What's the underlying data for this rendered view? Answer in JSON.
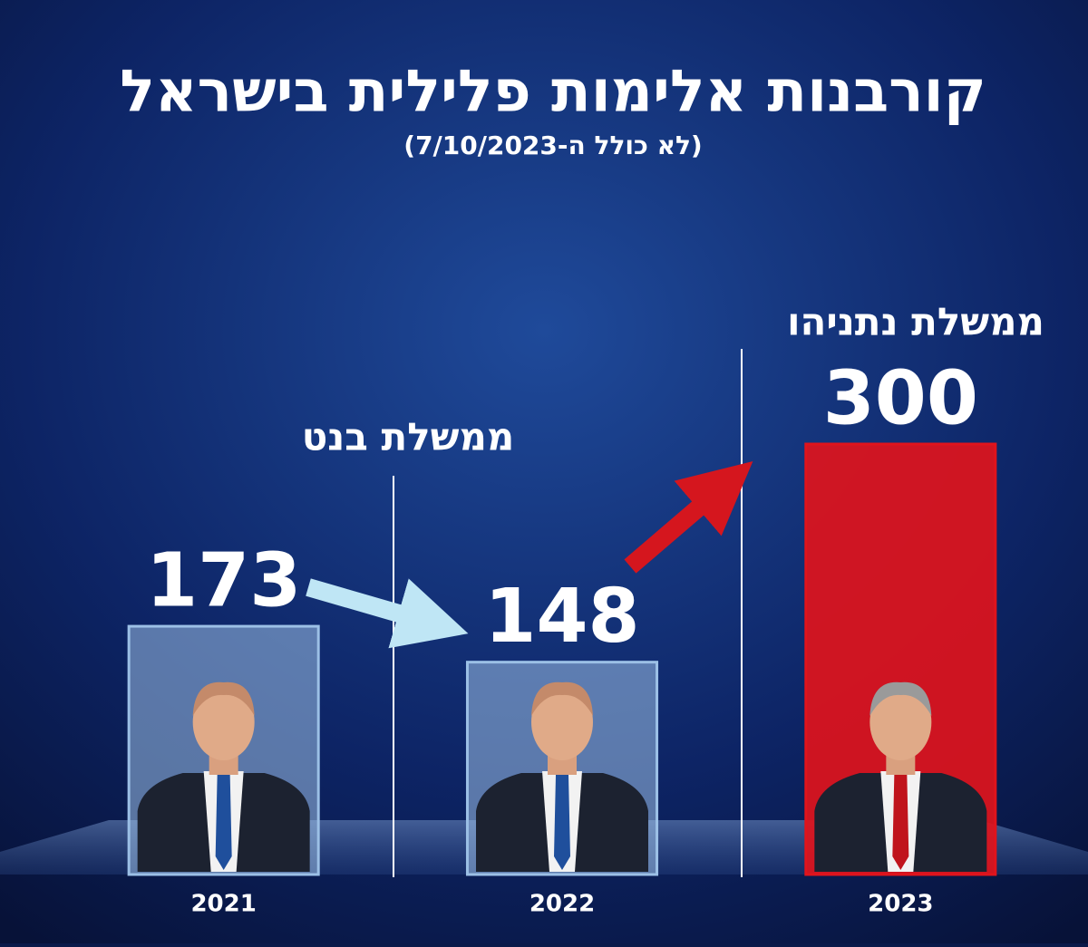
{
  "chart_data": {
    "type": "bar",
    "title": "קורבנות אלימות פלילית בישראל",
    "subtitle": "(לא כולל ה-7/10/2023)",
    "categories": [
      "2021",
      "2022",
      "2023"
    ],
    "values": [
      173,
      148,
      300
    ],
    "colors": [
      "#9cc0e6",
      "#9cc0e6",
      "#e0141c"
    ],
    "ylim": [
      0,
      300
    ],
    "annotations": [
      "ממשלת בנט",
      "ממשלת נתניהו"
    ]
  }
}
